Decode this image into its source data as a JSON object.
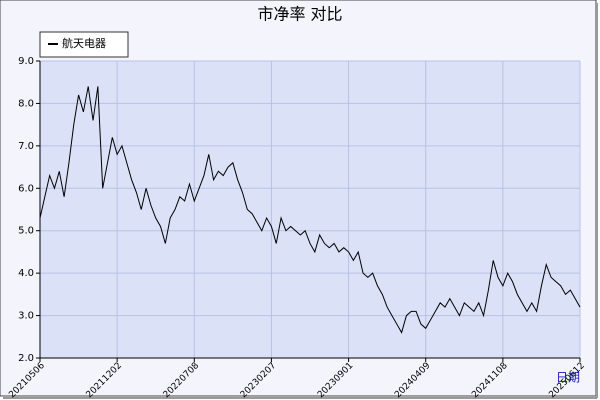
{
  "chart_data": {
    "type": "line",
    "title": "市净率  对比",
    "x_label": "日期",
    "categories": [
      "20210506",
      null,
      null,
      null,
      null,
      null,
      null,
      null,
      null,
      null,
      null,
      null,
      null,
      null,
      null,
      null,
      "20211202",
      null,
      null,
      null,
      null,
      null,
      null,
      null,
      null,
      null,
      null,
      null,
      null,
      null,
      null,
      null,
      "20220708",
      null,
      null,
      null,
      null,
      null,
      null,
      null,
      null,
      null,
      null,
      null,
      null,
      null,
      null,
      null,
      "20230207",
      null,
      null,
      null,
      null,
      null,
      null,
      null,
      null,
      null,
      null,
      null,
      null,
      null,
      null,
      null,
      "20230901",
      null,
      null,
      null,
      null,
      null,
      null,
      null,
      null,
      null,
      null,
      null,
      null,
      null,
      null,
      null,
      "20240409",
      null,
      null,
      null,
      null,
      null,
      null,
      null,
      null,
      null,
      null,
      null,
      null,
      null,
      null,
      null,
      "20241108",
      null,
      null,
      null,
      null,
      null,
      null,
      null,
      null,
      null,
      null,
      null,
      null,
      null,
      null,
      null,
      "20250612"
    ],
    "series": [
      {
        "name": "航天电器",
        "color": "#000000",
        "values": [
          5.3,
          5.8,
          6.3,
          6.0,
          6.4,
          5.8,
          6.6,
          7.5,
          8.2,
          7.8,
          8.4,
          7.6,
          8.4,
          6.0,
          6.6,
          7.2,
          6.8,
          7.0,
          6.6,
          6.2,
          5.9,
          5.5,
          6.0,
          5.6,
          5.3,
          5.1,
          4.7,
          5.3,
          5.5,
          5.8,
          5.7,
          6.1,
          5.7,
          6.0,
          6.3,
          6.8,
          6.2,
          6.4,
          6.3,
          6.5,
          6.6,
          6.2,
          5.9,
          5.5,
          5.4,
          5.2,
          5.0,
          5.3,
          5.1,
          4.7,
          5.3,
          5.0,
          5.1,
          5.0,
          4.9,
          5.0,
          4.7,
          4.5,
          4.9,
          4.7,
          4.6,
          4.7,
          4.5,
          4.6,
          4.5,
          4.3,
          4.5,
          4.0,
          3.9,
          4.0,
          3.7,
          3.5,
          3.2,
          3.0,
          2.8,
          2.6,
          3.0,
          3.1,
          3.1,
          2.8,
          2.7,
          2.9,
          3.1,
          3.3,
          3.2,
          3.4,
          3.2,
          3.0,
          3.3,
          3.2,
          3.1,
          3.3,
          3.0,
          3.6,
          4.3,
          3.9,
          3.7,
          4.0,
          3.8,
          3.5,
          3.3,
          3.1,
          3.3,
          3.1,
          3.7,
          4.2,
          3.9,
          3.8,
          3.7,
          3.5,
          3.6,
          3.4,
          3.2
        ]
      }
    ],
    "ylim": [
      2,
      9
    ],
    "yticks": [
      {
        "value": 2,
        "label": "2.0"
      },
      {
        "value": 3,
        "label": "3.0"
      },
      {
        "value": 4,
        "label": "4.0"
      },
      {
        "value": 5,
        "label": "5.0"
      },
      {
        "value": 6,
        "label": "6.0"
      },
      {
        "value": 7,
        "label": "7.0"
      },
      {
        "value": 8,
        "label": "8.0"
      },
      {
        "value": 9,
        "label": "9.0"
      }
    ],
    "grid": true
  }
}
